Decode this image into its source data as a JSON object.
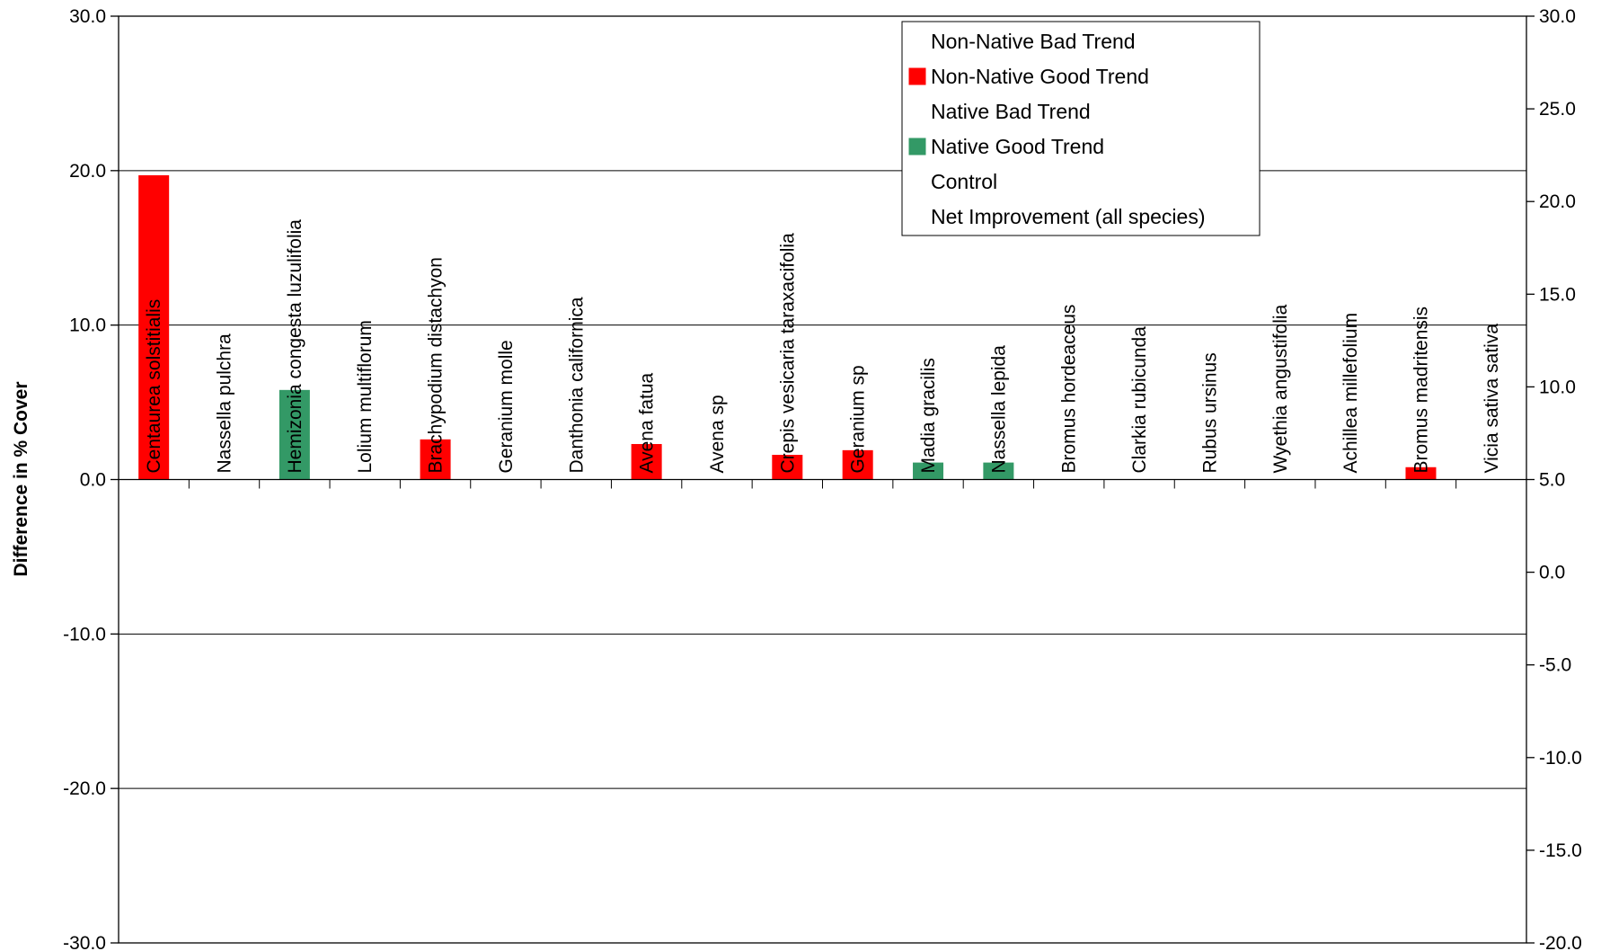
{
  "chart_data": {
    "type": "bar",
    "title": "",
    "xlabel": "",
    "ylabel": "Difference in % Cover",
    "ylim": [
      -30,
      30
    ],
    "yticks": [
      "30.0",
      "20.0",
      "10.0",
      "0.0",
      "-10.0",
      "-20.0",
      "-30.0"
    ],
    "y2lim": [
      -20,
      30
    ],
    "y2ticks": [
      "30.0",
      "25.0",
      "20.0",
      "15.0",
      "10.0",
      "5.0",
      "0.0",
      "-5.0",
      "-10.0",
      "-15.0",
      "-20.0"
    ],
    "grid": "horizontal major lines",
    "legend_position": "top-right",
    "categories": [
      "Centaurea solstitialis",
      "Nassella pulchra",
      "Hemizonia congesta luzulifolia",
      "Lolium multiflorum",
      "Brachypodium distachyon",
      "Geranium molle",
      "Danthonia californica",
      "Avena fatua",
      "Avena sp",
      "Crepis vesicaria taraxacifolia",
      "Geranium sp",
      "Madia gracilis",
      "Nassella lepida",
      "Bromus hordeaceus",
      "Clarkia rubicunda",
      "Rubus ursinus",
      "Wyethia angustifolia",
      "Achillea millefolium",
      "Bromus madritensis",
      "Vicia sativa sativa"
    ],
    "values": [
      19.7,
      0,
      5.8,
      0,
      2.6,
      0,
      0,
      2.3,
      0,
      1.6,
      1.9,
      1.1,
      1.1,
      0,
      0,
      0,
      0,
      0,
      0.8,
      0
    ],
    "bar_series_index": [
      1,
      null,
      3,
      null,
      1,
      null,
      null,
      1,
      null,
      1,
      1,
      3,
      3,
      null,
      null,
      null,
      null,
      null,
      1,
      null
    ],
    "series": [
      {
        "name": "Non-Native Bad Trend",
        "color": "#ffffff"
      },
      {
        "name": "Non-Native Good Trend",
        "color": "#ff0000"
      },
      {
        "name": "Native Bad Trend",
        "color": "#ffffff"
      },
      {
        "name": "Native Good Trend",
        "color": "#339966"
      },
      {
        "name": "Control",
        "color": "#ffffff"
      },
      {
        "name": "Net Improvement (all species)",
        "color": "#ffffff"
      }
    ]
  }
}
